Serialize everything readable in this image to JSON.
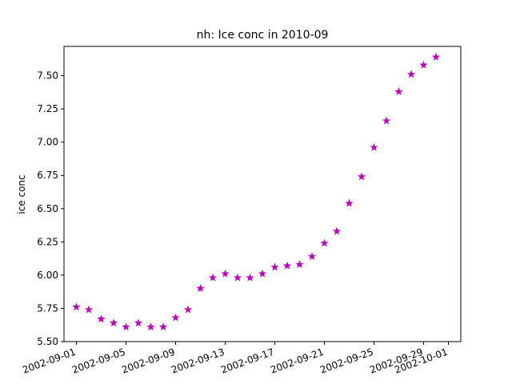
{
  "chart_data": {
    "type": "scatter",
    "title": "nh: Ice conc in 2010-09",
    "xlabel": "",
    "ylabel": "ice conc",
    "marker": "star",
    "color": "#bf00bf",
    "grid": false,
    "xlim": [
      "2002-08-31",
      "2002-10-02"
    ],
    "ylim": [
      5.5,
      7.72
    ],
    "xticks": [
      "2002-09-01",
      "2002-09-05",
      "2002-09-09",
      "2002-09-13",
      "2002-09-17",
      "2002-09-21",
      "2002-09-25",
      "2002-09-29",
      "2002-10-01"
    ],
    "yticks": [
      5.5,
      5.75,
      6.0,
      6.25,
      6.5,
      6.75,
      7.0,
      7.25,
      7.5
    ],
    "ytick_labels": [
      "5.50",
      "5.75",
      "6.00",
      "6.25",
      "6.50",
      "6.75",
      "7.00",
      "7.25",
      "7.50"
    ],
    "x": [
      "2002-09-01",
      "2002-09-02",
      "2002-09-03",
      "2002-09-04",
      "2002-09-05",
      "2002-09-06",
      "2002-09-07",
      "2002-09-08",
      "2002-09-09",
      "2002-09-10",
      "2002-09-11",
      "2002-09-12",
      "2002-09-13",
      "2002-09-14",
      "2002-09-15",
      "2002-09-16",
      "2002-09-17",
      "2002-09-18",
      "2002-09-19",
      "2002-09-20",
      "2002-09-21",
      "2002-09-22",
      "2002-09-23",
      "2002-09-24",
      "2002-09-25",
      "2002-09-26",
      "2002-09-27",
      "2002-09-28",
      "2002-09-29",
      "2002-09-30"
    ],
    "y": [
      5.76,
      5.74,
      5.67,
      5.64,
      5.61,
      5.64,
      5.61,
      5.61,
      5.68,
      5.74,
      5.9,
      5.98,
      6.01,
      5.98,
      5.98,
      6.01,
      6.06,
      6.07,
      6.08,
      6.14,
      6.24,
      6.33,
      6.54,
      6.74,
      6.96,
      7.16,
      7.38,
      7.51,
      7.58,
      7.64
    ]
  }
}
